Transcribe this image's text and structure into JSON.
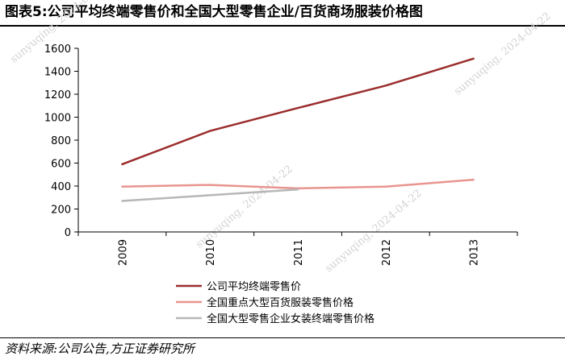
{
  "header": {
    "title": "图表5:公司平均终端零售价和全国大型零售企业/百货商场服装价格图"
  },
  "footer": {
    "source": "资料来源:公司公告,方正证券研究所"
  },
  "watermark": {
    "text": "sunyuqing, 2024-04-22"
  },
  "colors": {
    "series1": "#9b2d2d",
    "series2": "#e8958f",
    "series3": "#b7b7b7",
    "axis": "#000000"
  },
  "chart_data": {
    "type": "line",
    "title": "",
    "xlabel": "",
    "ylabel": "",
    "x": [
      "2009",
      "2010",
      "2011",
      "2012",
      "2013"
    ],
    "ylim": [
      0,
      1600
    ],
    "yticks": [
      0,
      200,
      400,
      600,
      800,
      1000,
      1200,
      1400,
      1600
    ],
    "grid": false,
    "legend": "bottom",
    "series": [
      {
        "name": "公司平均终端零售价",
        "values": [
          590,
          880,
          1080,
          1275,
          1510
        ]
      },
      {
        "name": "全国重点大型百货服装零售价格",
        "values": [
          395,
          410,
          380,
          395,
          455
        ]
      },
      {
        "name": "全国大型零售企业女装终端零售价格",
        "values": [
          270,
          320,
          370,
          null,
          null
        ]
      }
    ]
  }
}
